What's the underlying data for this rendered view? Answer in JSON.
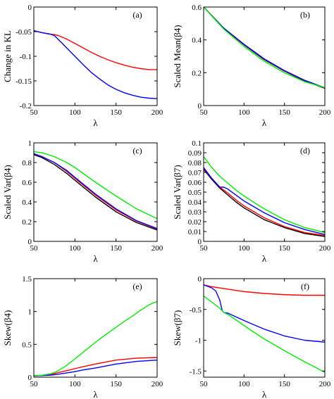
{
  "chart_data": [
    {
      "id": "a",
      "type": "line",
      "panel_label": "(a)",
      "xlabel": "λ",
      "ylabel": "Change in KL",
      "xlim": [
        50,
        200
      ],
      "ylim": [
        -0.2,
        0
      ],
      "xticks": [
        "50",
        "100",
        "150",
        "200"
      ],
      "yticks": [
        "-0.2",
        "-0.15",
        "-0.1",
        "-0.05",
        "0"
      ],
      "series": [
        {
          "color": "#ff0000",
          "x": [
            50,
            60,
            70,
            75,
            80,
            90,
            100,
            110,
            120,
            130,
            140,
            150,
            160,
            170,
            180,
            190,
            200
          ],
          "y": [
            -0.048,
            -0.052,
            -0.055,
            -0.056,
            -0.058,
            -0.065,
            -0.074,
            -0.083,
            -0.092,
            -0.1,
            -0.107,
            -0.113,
            -0.118,
            -0.122,
            -0.125,
            -0.127,
            -0.127
          ]
        },
        {
          "color": "#0000ff",
          "x": [
            50,
            60,
            70,
            75,
            80,
            90,
            100,
            110,
            120,
            130,
            140,
            150,
            160,
            170,
            180,
            190,
            200
          ],
          "y": [
            -0.048,
            -0.052,
            -0.055,
            -0.058,
            -0.066,
            -0.083,
            -0.1,
            -0.117,
            -0.133,
            -0.146,
            -0.158,
            -0.167,
            -0.174,
            -0.179,
            -0.183,
            -0.185,
            -0.186
          ]
        }
      ]
    },
    {
      "id": "b",
      "type": "line",
      "panel_label": "(b)",
      "xlabel": "λ",
      "ylabel": "Scaled Mean(β4)",
      "xlim": [
        50,
        200
      ],
      "ylim": [
        0,
        0.6
      ],
      "xticks": [
        "50",
        "100",
        "150",
        "200"
      ],
      "yticks": [
        "0",
        "0.2",
        "0.4",
        "0.6"
      ],
      "series": [
        {
          "color": "#000000",
          "x": [
            50,
            75,
            100,
            125,
            150,
            175,
            200
          ],
          "y": [
            0.6,
            0.47,
            0.37,
            0.28,
            0.21,
            0.15,
            0.105
          ]
        },
        {
          "color": "#ff0000",
          "x": [
            50,
            75,
            100,
            125,
            150,
            175,
            200
          ],
          "y": [
            0.6,
            0.47,
            0.372,
            0.283,
            0.212,
            0.153,
            0.107
          ]
        },
        {
          "color": "#0000ff",
          "x": [
            50,
            75,
            100,
            125,
            150,
            175,
            200
          ],
          "y": [
            0.6,
            0.471,
            0.373,
            0.284,
            0.213,
            0.154,
            0.108
          ]
        },
        {
          "color": "#00ee00",
          "x": [
            50,
            75,
            100,
            125,
            150,
            175,
            200
          ],
          "y": [
            0.6,
            0.465,
            0.36,
            0.27,
            0.2,
            0.145,
            0.11
          ]
        }
      ]
    },
    {
      "id": "c",
      "type": "line",
      "panel_label": "(c)",
      "xlabel": "λ",
      "ylabel": "Scaled Var(β4)",
      "xlim": [
        50,
        200
      ],
      "ylim": [
        0,
        1
      ],
      "xticks": [
        "50",
        "100",
        "150",
        "200"
      ],
      "yticks": [
        "0",
        "0.2",
        "0.4",
        "0.6",
        "0.8",
        "1"
      ],
      "series": [
        {
          "color": "#000000",
          "x": [
            50,
            60,
            75,
            90,
            100,
            125,
            150,
            175,
            200
          ],
          "y": [
            0.88,
            0.85,
            0.78,
            0.69,
            0.62,
            0.45,
            0.3,
            0.19,
            0.115
          ]
        },
        {
          "color": "#ff0000",
          "x": [
            50,
            60,
            75,
            90,
            100,
            125,
            150,
            175,
            200
          ],
          "y": [
            0.89,
            0.86,
            0.8,
            0.71,
            0.64,
            0.47,
            0.32,
            0.205,
            0.125
          ]
        },
        {
          "color": "#0000ff",
          "x": [
            50,
            60,
            75,
            90,
            100,
            125,
            150,
            175,
            200
          ],
          "y": [
            0.89,
            0.86,
            0.8,
            0.72,
            0.65,
            0.48,
            0.33,
            0.21,
            0.13
          ]
        },
        {
          "color": "#00ee00",
          "x": [
            50,
            60,
            75,
            90,
            100,
            125,
            150,
            175,
            200
          ],
          "y": [
            0.91,
            0.9,
            0.86,
            0.8,
            0.75,
            0.6,
            0.46,
            0.33,
            0.23
          ]
        }
      ]
    },
    {
      "id": "d",
      "type": "line",
      "panel_label": "(d)",
      "xlabel": "λ",
      "ylabel": "Scaled Var(β7)",
      "xlim": [
        50,
        200
      ],
      "ylim": [
        0,
        0.1
      ],
      "xticks": [
        "50",
        "100",
        "150",
        "200"
      ],
      "yticks": [
        "0",
        "0.01",
        "0.02",
        "0.03",
        "0.04",
        "0.05",
        "0.06",
        "0.07",
        "0.08",
        "0.09",
        "0.1"
      ],
      "series": [
        {
          "color": "#000000",
          "x": [
            50,
            60,
            70,
            80,
            90,
            100,
            125,
            150,
            175,
            200
          ],
          "y": [
            0.073,
            0.063,
            0.054,
            0.047,
            0.04,
            0.034,
            0.022,
            0.014,
            0.008,
            0.005
          ]
        },
        {
          "color": "#ff0000",
          "x": [
            50,
            60,
            70,
            75,
            80,
            90,
            100,
            125,
            150,
            175,
            200
          ],
          "y": [
            0.074,
            0.064,
            0.055,
            0.052,
            0.049,
            0.042,
            0.036,
            0.024,
            0.015,
            0.009,
            0.006
          ]
        },
        {
          "color": "#0000ff",
          "x": [
            50,
            60,
            70,
            75,
            80,
            90,
            100,
            125,
            150,
            175,
            200
          ],
          "y": [
            0.075,
            0.064,
            0.055,
            0.055,
            0.053,
            0.047,
            0.041,
            0.029,
            0.019,
            0.012,
            0.007
          ]
        },
        {
          "color": "#00ee00",
          "x": [
            50,
            60,
            70,
            80,
            90,
            100,
            125,
            150,
            175,
            200
          ],
          "y": [
            0.086,
            0.075,
            0.066,
            0.059,
            0.052,
            0.046,
            0.033,
            0.022,
            0.014,
            0.009
          ]
        }
      ]
    },
    {
      "id": "e",
      "type": "line",
      "panel_label": "(e)",
      "xlabel": "λ",
      "ylabel": "Skew(β4)",
      "xlim": [
        50,
        200
      ],
      "ylim": [
        0,
        1.5
      ],
      "xticks": [
        "50",
        "100",
        "150",
        "200"
      ],
      "yticks": [
        "0",
        "0.5",
        "1",
        "1.5"
      ],
      "series": [
        {
          "color": "#ff0000",
          "x": [
            50,
            60,
            70,
            80,
            90,
            100,
            110,
            125,
            150,
            175,
            200
          ],
          "y": [
            0.02,
            0.025,
            0.04,
            0.07,
            0.1,
            0.13,
            0.16,
            0.2,
            0.26,
            0.29,
            0.3
          ]
        },
        {
          "color": "#0000ff",
          "x": [
            50,
            60,
            70,
            80,
            90,
            100,
            110,
            125,
            150,
            175,
            200
          ],
          "y": [
            0.02,
            0.025,
            0.03,
            0.045,
            0.065,
            0.085,
            0.11,
            0.14,
            0.2,
            0.24,
            0.26
          ]
        },
        {
          "color": "#00ee00",
          "x": [
            50,
            60,
            70,
            75,
            80,
            90,
            100,
            110,
            120,
            130,
            140,
            150,
            160,
            170,
            180,
            190,
            195,
            200
          ],
          "y": [
            0.02,
            0.03,
            0.05,
            0.07,
            0.1,
            0.18,
            0.28,
            0.38,
            0.48,
            0.58,
            0.67,
            0.76,
            0.85,
            0.93,
            1.02,
            1.1,
            1.13,
            1.15
          ]
        }
      ]
    },
    {
      "id": "f",
      "type": "line",
      "panel_label": "(f)",
      "xlabel": "λ",
      "ylabel": "Skew(β7)",
      "xlim": [
        50,
        200
      ],
      "ylim": [
        -1.6,
        0
      ],
      "xticks": [
        "50",
        "100",
        "150",
        "200"
      ],
      "yticks": [
        "-1.5",
        "-1",
        "-0.5",
        "0"
      ],
      "series": [
        {
          "color": "#ff0000",
          "x": [
            50,
            60,
            70,
            80,
            90,
            100,
            125,
            150,
            175,
            200
          ],
          "y": [
            -0.1,
            -0.13,
            -0.15,
            -0.17,
            -0.19,
            -0.21,
            -0.24,
            -0.26,
            -0.27,
            -0.27
          ]
        },
        {
          "color": "#0000ff",
          "x": [
            50,
            60,
            65,
            70,
            73,
            75,
            80,
            90,
            100,
            125,
            150,
            175,
            200
          ],
          "y": [
            -0.1,
            -0.15,
            -0.2,
            -0.35,
            -0.52,
            -0.55,
            -0.56,
            -0.62,
            -0.68,
            -0.82,
            -0.93,
            -1.0,
            -1.03
          ]
        },
        {
          "color": "#00ee00",
          "x": [
            50,
            60,
            70,
            75,
            80,
            90,
            100,
            110,
            125,
            150,
            175,
            200
          ],
          "y": [
            -0.28,
            -0.38,
            -0.48,
            -0.55,
            -0.58,
            -0.67,
            -0.76,
            -0.85,
            -0.98,
            -1.17,
            -1.35,
            -1.52
          ]
        }
      ]
    }
  ]
}
